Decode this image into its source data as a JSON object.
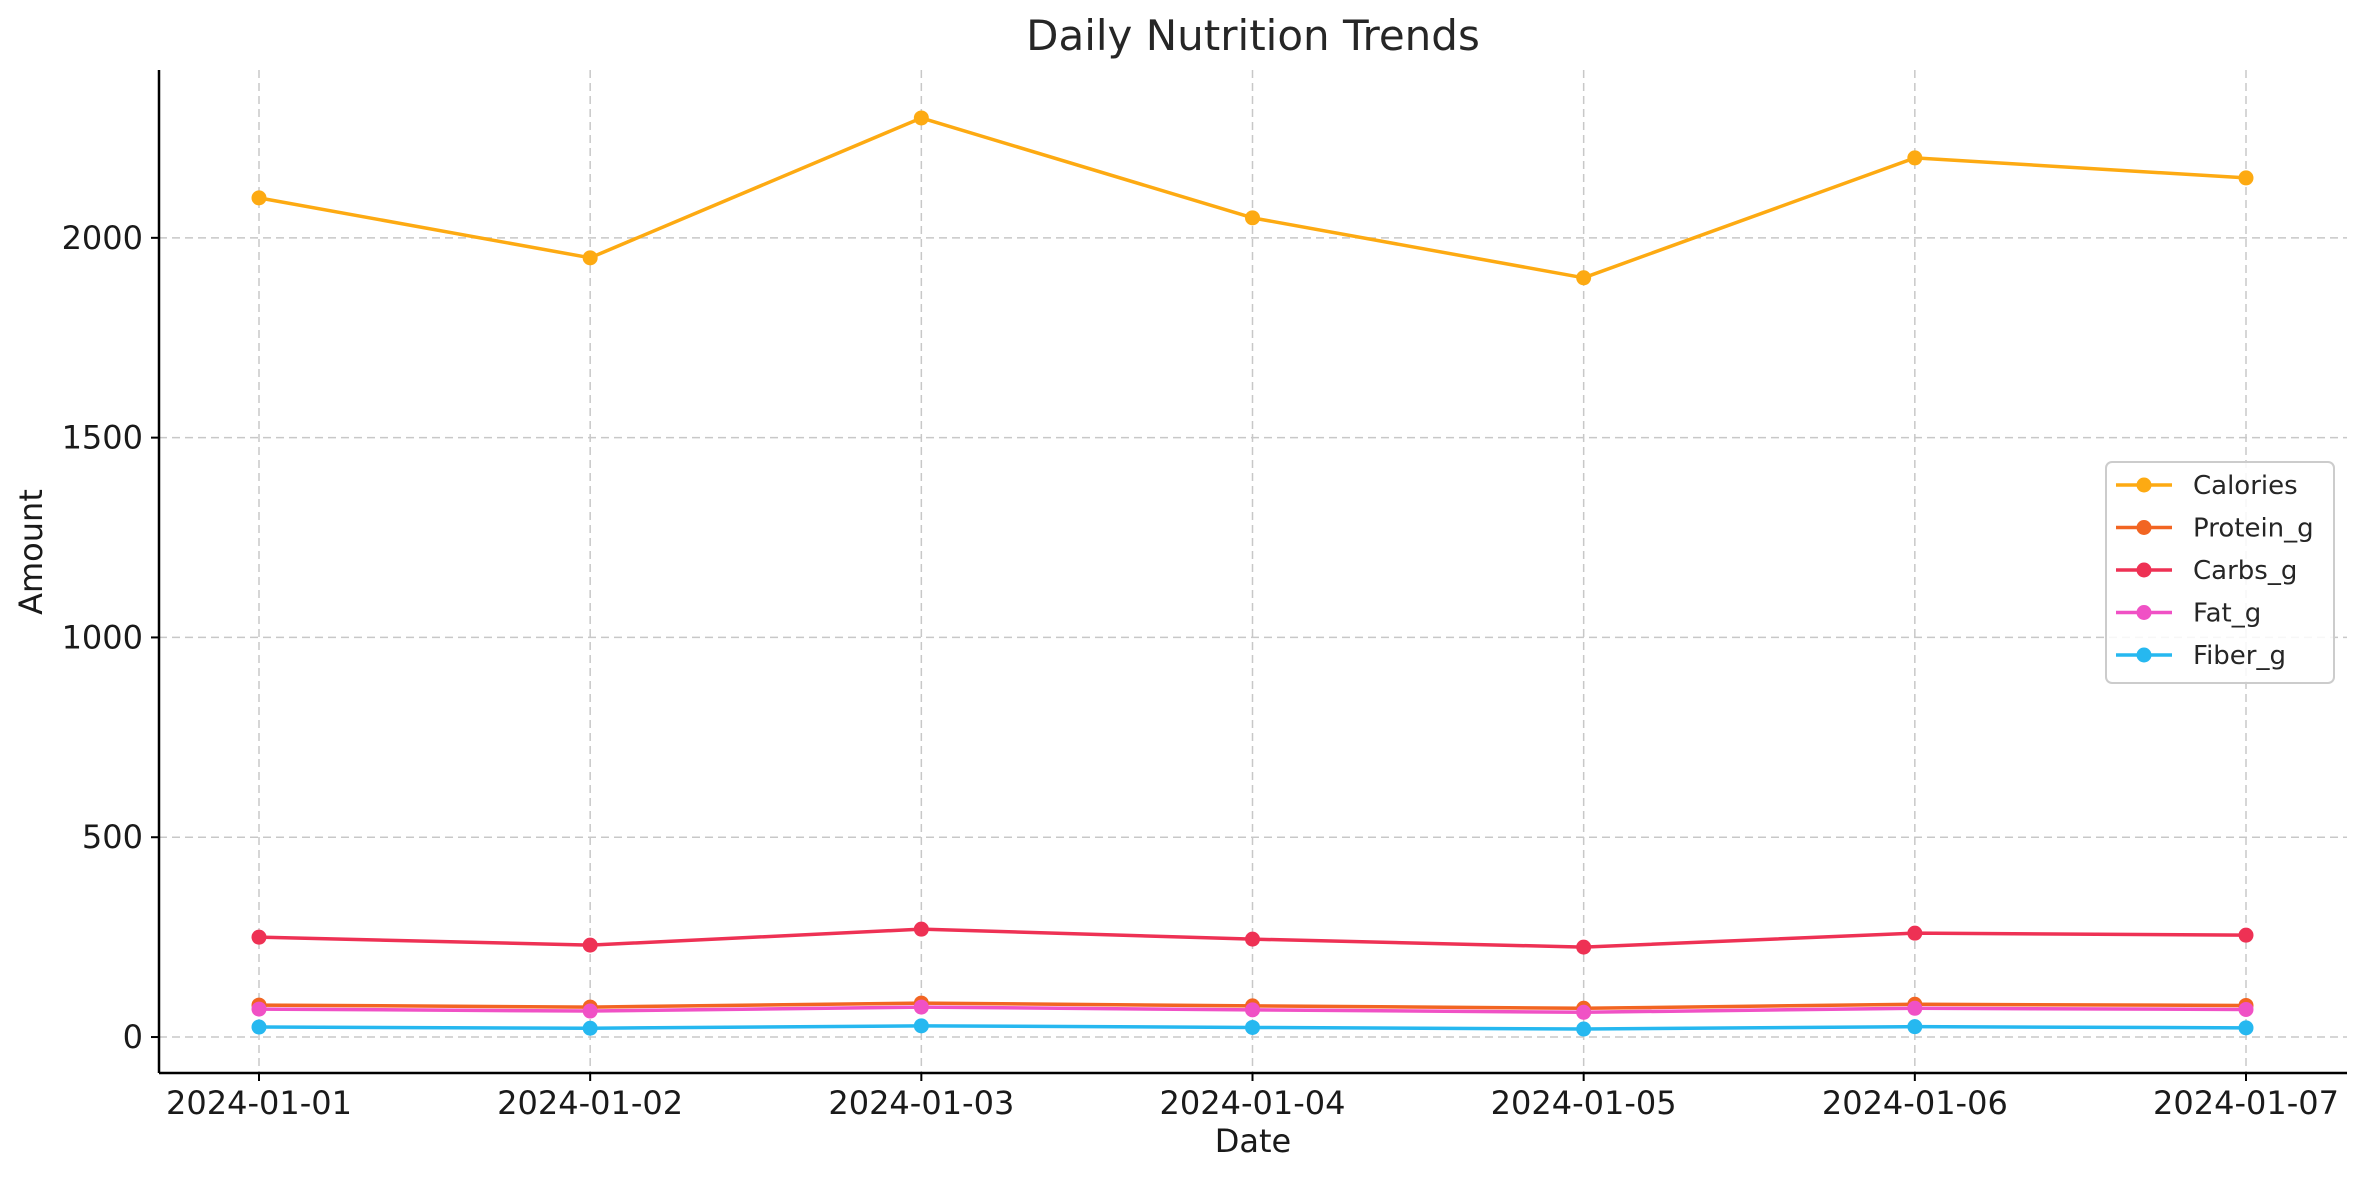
{
  "chart_data": {
    "type": "line",
    "title": "Daily Nutrition Trends",
    "xlabel": "Date",
    "ylabel": "Amount",
    "x": [
      "2024-01-01",
      "2024-01-02",
      "2024-01-03",
      "2024-01-04",
      "2024-01-05",
      "2024-01-06",
      "2024-01-07"
    ],
    "ylim": [
      -90,
      2420
    ],
    "yticks": [
      0,
      500,
      1000,
      1500,
      2000
    ],
    "grid": true,
    "legend_position": "center-right",
    "series": [
      {
        "name": "Calories",
        "color": "#fdaa12",
        "values": [
          2100,
          1950,
          2300,
          2050,
          1900,
          2200,
          2150
        ]
      },
      {
        "name": "Protein_g",
        "color": "#f26522",
        "values": [
          80,
          75,
          85,
          78,
          72,
          82,
          79
        ]
      },
      {
        "name": "Carbs_g",
        "color": "#ee3154",
        "values": [
          250,
          230,
          270,
          245,
          225,
          260,
          255
        ]
      },
      {
        "name": "Fat_g",
        "color": "#f051c5",
        "values": [
          70,
          65,
          75,
          68,
          62,
          72,
          69
        ]
      },
      {
        "name": "Fiber_g",
        "color": "#26b8f0",
        "values": [
          25,
          22,
          28,
          24,
          20,
          26,
          23
        ]
      }
    ]
  }
}
